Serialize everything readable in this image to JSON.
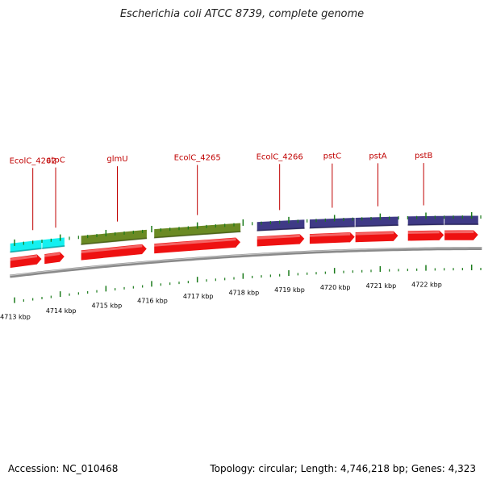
{
  "header": {
    "title": "Escherichia coli ATCC 8739, complete genome"
  },
  "footer": {
    "accession": "Accession: NC_010468",
    "topology": "Topology: circular; Length: 4,746,218 bp; Genes: 4,323"
  },
  "map": {
    "start_kbp": 4712.9,
    "end_kbp": 4723.5,
    "kbp_unit": "kbp",
    "tick_labels": [
      4713,
      4714,
      4715,
      4716,
      4717,
      4718,
      4719,
      4720,
      4721,
      4722
    ],
    "colors": {
      "cds": "#ee1111",
      "cog_cyan": "#14f0f0",
      "cog_green": "#6b8a24",
      "cog_purple": "#3f3a86",
      "backbone": "#8a8a8a",
      "tick": "#1a7a1a",
      "label": "#c00000"
    },
    "cog_features": [
      {
        "start": 4712.9,
        "end": 4713.6,
        "color": "cog_cyan"
      },
      {
        "start": 4713.6,
        "end": 4714.1,
        "color": "cog_cyan"
      },
      {
        "start": 4714.45,
        "end": 4715.9,
        "color": "cog_green"
      },
      {
        "start": 4716.05,
        "end": 4717.95,
        "color": "cog_green"
      },
      {
        "start": 4718.3,
        "end": 4719.35,
        "color": "cog_purple"
      },
      {
        "start": 4719.45,
        "end": 4720.45,
        "color": "cog_purple"
      },
      {
        "start": 4720.45,
        "end": 4721.4,
        "color": "cog_purple"
      },
      {
        "start": 4721.6,
        "end": 4722.4,
        "color": "cog_purple"
      },
      {
        "start": 4722.4,
        "end": 4723.15,
        "color": "cog_purple"
      }
    ],
    "cds_features": [
      {
        "start": 4712.9,
        "end": 4713.6
      },
      {
        "start": 4713.65,
        "end": 4714.1
      },
      {
        "start": 4714.45,
        "end": 4715.9
      },
      {
        "start": 4716.05,
        "end": 4717.95
      },
      {
        "start": 4718.3,
        "end": 4719.35
      },
      {
        "start": 4719.45,
        "end": 4720.45
      },
      {
        "start": 4720.45,
        "end": 4721.4
      },
      {
        "start": 4721.6,
        "end": 4722.4
      },
      {
        "start": 4722.4,
        "end": 4723.15
      }
    ],
    "gene_labels": [
      {
        "name": "EcolC_4262",
        "at": 4713.4
      },
      {
        "name": "atpC",
        "at": 4713.9
      },
      {
        "name": "glmU",
        "at": 4715.25
      },
      {
        "name": "EcolC_4265",
        "at": 4717.0
      },
      {
        "name": "EcolC_4266",
        "at": 4718.8
      },
      {
        "name": "pstC",
        "at": 4719.95
      },
      {
        "name": "pstA",
        "at": 4720.95
      },
      {
        "name": "pstB",
        "at": 4721.95
      }
    ]
  }
}
